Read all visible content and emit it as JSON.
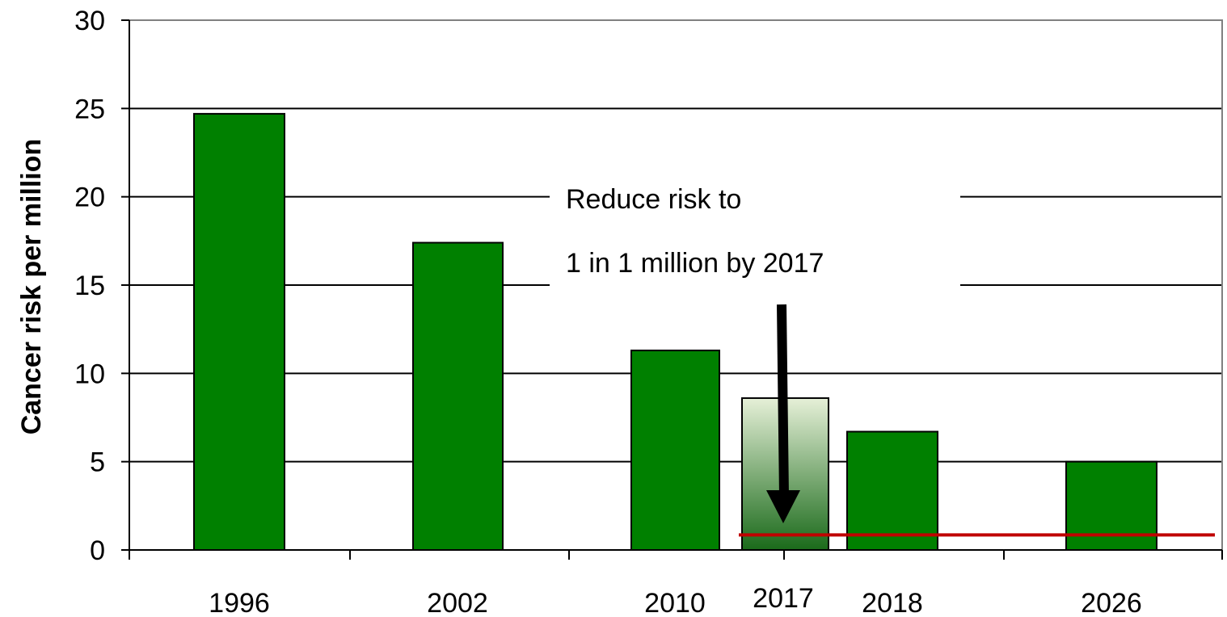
{
  "chart_data": {
    "type": "bar",
    "title": "",
    "xlabel": "",
    "ylabel": "Cancer risk per million",
    "ylim": [
      0,
      30
    ],
    "yticks": [
      0,
      5,
      10,
      15,
      20,
      25,
      30
    ],
    "grid": true,
    "bars": [
      {
        "label": "1996",
        "value": 24.7,
        "style": "solid"
      },
      {
        "label": "2002",
        "value": 17.4,
        "style": "solid"
      },
      {
        "label": "2010",
        "value": 11.3,
        "style": "solid"
      },
      {
        "label": "2017",
        "value": 8.6,
        "style": "gradient"
      },
      {
        "label": "2018",
        "value": 6.7,
        "style": "solid"
      },
      {
        "label": "2026",
        "value": 5.0,
        "style": "solid"
      }
    ],
    "target_line": {
      "value": 0.85,
      "color": "#c00000"
    },
    "annotation": {
      "line1": "Reduce risk to",
      "line2": "1 in 1 million by 2017"
    },
    "colors": {
      "bar_fill": "#008000",
      "gradient_top": "#e6f0d8",
      "gradient_bottom": "#1a6a1a",
      "target": "#c00000",
      "grid": "#000000"
    }
  }
}
